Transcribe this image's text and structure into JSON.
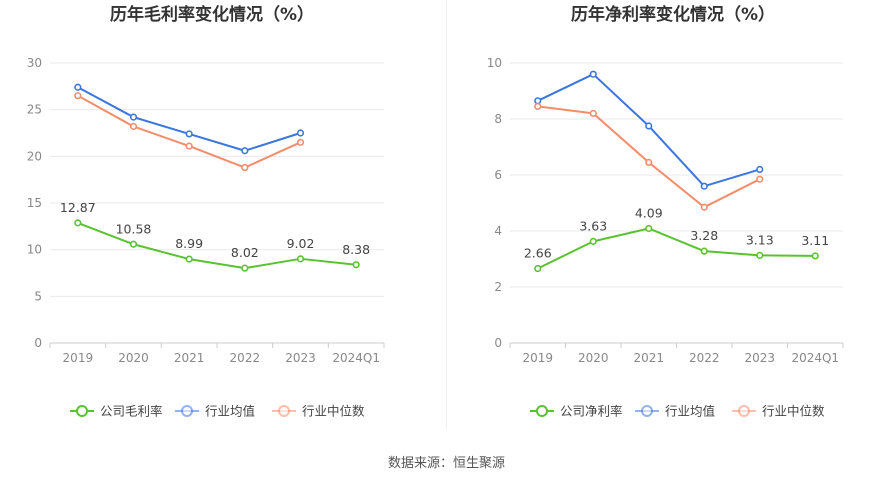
{
  "source": "数据来源：恒生聚源",
  "colors": {
    "company": "#5ac230",
    "avg": "#3b76df",
    "median": "#f38d6b",
    "grid": "#e9e9ef",
    "axis": "#cccccc"
  },
  "chart_data": [
    {
      "type": "line",
      "title": "历年毛利率变化情况（%）",
      "categories": [
        "2019",
        "2020",
        "2021",
        "2022",
        "2023",
        "2024Q1"
      ],
      "ylim": [
        0,
        30
      ],
      "yticks": [
        0,
        5,
        10,
        15,
        20,
        25,
        30
      ],
      "grid": true,
      "legend": "bottom",
      "series": [
        {
          "name": "公司毛利率",
          "key": "company",
          "values": [
            12.87,
            10.58,
            8.99,
            8.02,
            9.02,
            8.38
          ],
          "labels": [
            "12.87",
            "10.58",
            "8.99",
            "8.02",
            "9.02",
            "8.38"
          ]
        },
        {
          "name": "行业均值",
          "key": "avg",
          "values": [
            27.4,
            24.2,
            22.4,
            20.6,
            22.5,
            null
          ]
        },
        {
          "name": "行业中位数",
          "key": "median",
          "values": [
            26.5,
            23.2,
            21.1,
            18.8,
            21.5,
            null
          ]
        }
      ]
    },
    {
      "type": "line",
      "title": "历年净利率变化情况（%）",
      "categories": [
        "2019",
        "2020",
        "2021",
        "2022",
        "2023",
        "2024Q1"
      ],
      "ylim": [
        0,
        10
      ],
      "yticks": [
        0,
        2,
        4,
        6,
        8,
        10
      ],
      "grid": true,
      "legend": "bottom",
      "series": [
        {
          "name": "公司净利率",
          "key": "company",
          "values": [
            2.66,
            3.63,
            4.09,
            3.28,
            3.13,
            3.11
          ],
          "labels": [
            "2.66",
            "3.63",
            "4.09",
            "3.28",
            "3.13",
            "3.11"
          ]
        },
        {
          "name": "行业均值",
          "key": "avg",
          "values": [
            8.65,
            9.6,
            7.75,
            5.6,
            6.2,
            null
          ]
        },
        {
          "name": "行业中位数",
          "key": "median",
          "values": [
            8.45,
            8.2,
            6.45,
            4.85,
            5.85,
            null
          ]
        }
      ]
    }
  ]
}
